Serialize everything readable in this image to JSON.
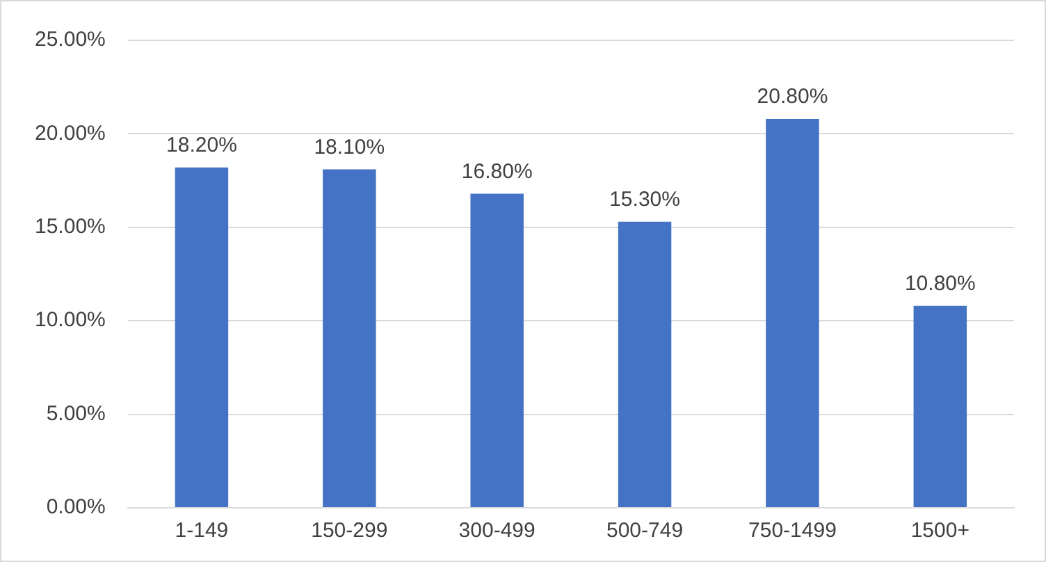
{
  "chart_data": {
    "type": "bar",
    "categories": [
      "1-149",
      "150-299",
      "300-499",
      "500-749",
      "750-1499",
      "1500+"
    ],
    "values": [
      18.2,
      18.1,
      16.8,
      15.3,
      20.8,
      10.8
    ],
    "value_labels": [
      "18.20%",
      "18.10%",
      "16.80%",
      "15.30%",
      "20.80%",
      "10.80%"
    ],
    "color": "#4472c4",
    "ylim": [
      0,
      25
    ],
    "yticks": [
      {
        "value": 0,
        "label": "0.00%"
      },
      {
        "value": 5,
        "label": "5.00%"
      },
      {
        "value": 10,
        "label": "10.00%"
      },
      {
        "value": 15,
        "label": "15.00%"
      },
      {
        "value": 20,
        "label": "20.00%"
      },
      {
        "value": 25,
        "label": "25.00%"
      }
    ],
    "grid": "y"
  }
}
